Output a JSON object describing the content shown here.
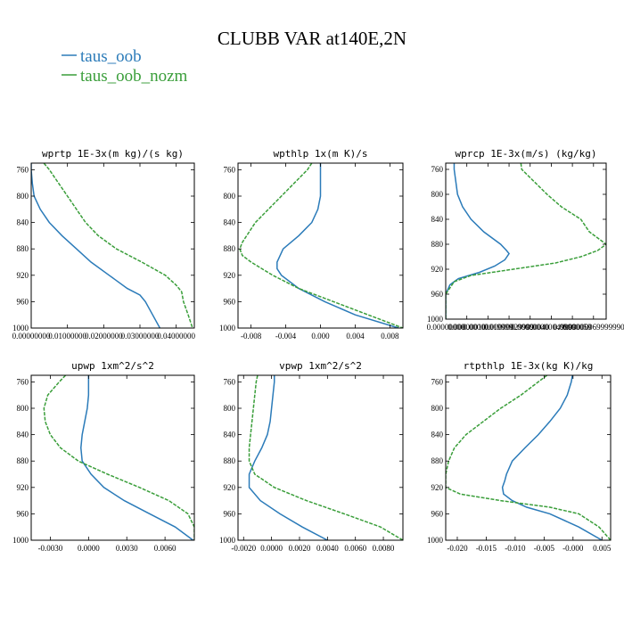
{
  "figure": {
    "title": "CLUBB VAR at140E,2N"
  },
  "colors": {
    "taus_oob": "#2b7bb9",
    "taus_oob_nozm": "#3a9e3a"
  },
  "legend": [
    {
      "name": "taus_oob",
      "color": "#2b7bb9",
      "dash": "none"
    },
    {
      "name": "taus_oob_nozm",
      "color": "#3a9e3a",
      "dash": "dashed"
    }
  ],
  "chart_data": [
    {
      "type": "line",
      "title": "wprtp  1E-3x(m kg)/(s kg)",
      "xlim": [
        0.0,
        0.045
      ],
      "ylim": [
        1000,
        750
      ],
      "xticks": [
        0.0,
        0.01,
        0.02,
        0.03,
        0.04
      ],
      "xtick_labels": [
        "0.00000000",
        "0.01000000",
        "0.02000000",
        "0.03000000",
        "0.04000000"
      ],
      "yticks": [
        760,
        800,
        840,
        880,
        920,
        960,
        1000
      ],
      "series": [
        {
          "name": "taus_oob",
          "y": [
            750,
            760,
            780,
            800,
            820,
            840,
            860,
            880,
            900,
            920,
            940,
            950,
            960,
            980,
            1000
          ],
          "x": [
            0.0,
            0.0,
            0.0003,
            0.0008,
            0.0025,
            0.005,
            0.0085,
            0.0125,
            0.0165,
            0.0215,
            0.0265,
            0.03,
            0.0315,
            0.0335,
            0.0355
          ]
        },
        {
          "name": "taus_oob_nozm",
          "y": [
            750,
            760,
            780,
            800,
            820,
            840,
            860,
            880,
            900,
            920,
            935,
            945,
            960,
            980,
            1000
          ],
          "x": [
            0.0035,
            0.005,
            0.0075,
            0.01,
            0.0125,
            0.015,
            0.0185,
            0.0235,
            0.0305,
            0.037,
            0.04,
            0.0415,
            0.042,
            0.0433,
            0.0445
          ]
        }
      ]
    },
    {
      "type": "line",
      "title": "wpthlp  1x(m K)/s",
      "xlim": [
        -0.0095,
        0.0095
      ],
      "ylim": [
        1000,
        750
      ],
      "xticks": [
        -0.008,
        -0.004,
        0.0,
        0.004,
        0.008
      ],
      "xtick_labels": [
        "-0.008",
        "-0.004",
        "0.000",
        "0.004",
        "0.008"
      ],
      "yticks": [
        760,
        800,
        840,
        880,
        920,
        960,
        1000
      ],
      "series": [
        {
          "name": "taus_oob",
          "y": [
            750,
            760,
            780,
            800,
            820,
            840,
            860,
            880,
            900,
            910,
            920,
            940,
            960,
            980,
            1000
          ],
          "x": [
            0.0,
            0.0,
            0.0,
            0.0,
            -0.0003,
            -0.001,
            -0.0025,
            -0.0043,
            -0.005,
            -0.005,
            -0.0045,
            -0.0025,
            0.0005,
            0.004,
            0.009
          ]
        },
        {
          "name": "taus_oob_nozm",
          "y": [
            750,
            760,
            780,
            800,
            820,
            840,
            860,
            870,
            880,
            890,
            900,
            920,
            940,
            960,
            980,
            1000
          ],
          "x": [
            -0.001,
            -0.0015,
            -0.003,
            -0.0045,
            -0.006,
            -0.0075,
            -0.0085,
            -0.009,
            -0.0093,
            -0.009,
            -0.008,
            -0.0055,
            -0.0025,
            0.0015,
            0.0055,
            0.0095
          ]
        }
      ]
    },
    {
      "type": "line",
      "title": "wprcp  1E-3x(m/s) (kg/kg)",
      "xlim": [
        0.0,
        1.9e-06
      ],
      "ylim": [
        1000,
        750
      ],
      "xticks": [
        0.0,
        2.5e-07,
        5e-07,
        7.5e-07,
        1e-06,
        1.25e-06,
        1.5e-06,
        1.75e-06
      ],
      "xtick_labels": [
        "0.00000000",
        "0.00000010",
        "0.00000019999",
        "0.00000029999",
        "0.00000040",
        "0.00000049999",
        "0.00000059",
        "0.00000069999990"
      ],
      "yticks": [
        760,
        800,
        840,
        880,
        920,
        960,
        1000
      ],
      "series": [
        {
          "name": "taus_oob",
          "y": [
            750,
            760,
            780,
            800,
            820,
            840,
            860,
            880,
            890,
            895,
            905,
            915,
            925,
            935,
            945,
            960,
            1000
          ],
          "x": [
            1e-07,
            1e-07,
            1.2e-07,
            1.4e-07,
            2e-07,
            3e-07,
            4.5e-07,
            6.5e-07,
            7.2e-07,
            7.5e-07,
            7e-07,
            5.8e-07,
            4e-07,
            1.5e-07,
            5e-08,
            0.0,
            0.0
          ]
        },
        {
          "name": "taus_oob_nozm",
          "y": [
            750,
            760,
            780,
            800,
            820,
            840,
            860,
            880,
            890,
            900,
            910,
            920,
            930,
            940,
            960,
            1000
          ],
          "x": [
            8.9e-07,
            9e-07,
            1.05e-06,
            1.2e-06,
            1.37e-06,
            1.6e-06,
            1.7e-06,
            1.9e-06,
            1.8e-06,
            1.6e-06,
            1.3e-06,
            8e-07,
            3e-07,
            1e-07,
            0.0,
            0.0
          ]
        }
      ]
    },
    {
      "type": "line",
      "title": "upwp  1xm^2/s^2",
      "xlim": [
        -0.0045,
        0.0083
      ],
      "ylim": [
        1000,
        750
      ],
      "xticks": [
        -0.003,
        0.0,
        0.003,
        0.006
      ],
      "xtick_labels": [
        "-0.0030",
        "0.0000",
        "0.0030",
        "0.0060"
      ],
      "yticks": [
        760,
        800,
        840,
        880,
        920,
        960,
        1000
      ],
      "series": [
        {
          "name": "taus_oob",
          "y": [
            750,
            760,
            780,
            800,
            820,
            840,
            860,
            880,
            900,
            920,
            940,
            960,
            980,
            1000
          ],
          "x": [
            0.0,
            0.0,
            0.0,
            -0.0001,
            -0.0003,
            -0.0005,
            -0.0006,
            -0.0005,
            0.0002,
            0.0012,
            0.0028,
            0.0048,
            0.0068,
            0.0082
          ]
        },
        {
          "name": "taus_oob_nozm",
          "y": [
            750,
            760,
            780,
            800,
            820,
            840,
            860,
            880,
            900,
            920,
            940,
            960,
            980,
            1000
          ],
          "x": [
            -0.0018,
            -0.0023,
            -0.0032,
            -0.0035,
            -0.0034,
            -0.003,
            -0.0022,
            -0.0008,
            0.0015,
            0.004,
            0.0063,
            0.0078,
            0.0083,
            0.0083
          ]
        }
      ]
    },
    {
      "type": "line",
      "title": "vpwp  1xm^2/s^2",
      "xlim": [
        -0.0024,
        0.0094
      ],
      "ylim": [
        1000,
        750
      ],
      "xticks": [
        -0.002,
        0.0,
        0.002,
        0.004,
        0.006,
        0.008
      ],
      "xtick_labels": [
        "-0.0020",
        "0.0000",
        "0.0020",
        "0.0040",
        "0.0060",
        "0.0080"
      ],
      "yticks": [
        760,
        800,
        840,
        880,
        920,
        960,
        1000
      ],
      "series": [
        {
          "name": "taus_oob",
          "y": [
            750,
            760,
            780,
            800,
            820,
            840,
            860,
            880,
            900,
            920,
            940,
            960,
            980,
            1000
          ],
          "x": [
            0.0002,
            0.0002,
            0.0001,
            0.0,
            -0.0001,
            -0.0003,
            -0.0007,
            -0.0012,
            -0.0016,
            -0.0016,
            -0.0008,
            0.0006,
            0.0022,
            0.004
          ]
        },
        {
          "name": "taus_oob_nozm",
          "y": [
            750,
            760,
            780,
            800,
            820,
            840,
            860,
            880,
            900,
            920,
            940,
            960,
            980,
            1000
          ],
          "x": [
            -0.001,
            -0.0011,
            -0.0012,
            -0.0013,
            -0.0014,
            -0.0015,
            -0.0016,
            -0.0016,
            -0.0012,
            0.0002,
            0.0025,
            0.0052,
            0.0078,
            0.0094
          ]
        }
      ]
    },
    {
      "type": "line",
      "title": "rtpthlp  1E-3x(kg K)/kg",
      "xlim": [
        -0.022,
        0.0065
      ],
      "ylim": [
        1000,
        750
      ],
      "xticks": [
        -0.02,
        -0.015,
        -0.01,
        -0.005,
        0.0,
        0.005
      ],
      "xtick_labels": [
        "-0.020",
        "-0.015",
        "-0.010",
        "-0.005",
        "-0.000",
        "0.005"
      ],
      "yticks": [
        760,
        800,
        840,
        880,
        920,
        960,
        1000
      ],
      "series": [
        {
          "name": "taus_oob",
          "y": [
            750,
            760,
            780,
            800,
            820,
            840,
            860,
            880,
            900,
            910,
            920,
            930,
            940,
            950,
            960,
            980,
            1000
          ],
          "x": [
            -0.0001,
            -0.0003,
            -0.001,
            -0.0022,
            -0.004,
            -0.006,
            -0.0083,
            -0.0105,
            -0.0115,
            -0.0118,
            -0.0122,
            -0.012,
            -0.0105,
            -0.008,
            -0.004,
            0.001,
            0.005
          ]
        },
        {
          "name": "taus_oob_nozm",
          "y": [
            750,
            760,
            780,
            800,
            820,
            840,
            860,
            880,
            900,
            920,
            930,
            940,
            950,
            960,
            980,
            1000
          ],
          "x": [
            -0.0045,
            -0.006,
            -0.009,
            -0.0125,
            -0.0155,
            -0.0185,
            -0.0205,
            -0.0215,
            -0.022,
            -0.022,
            -0.0195,
            -0.0125,
            -0.004,
            0.001,
            0.0045,
            0.0065
          ]
        }
      ]
    }
  ]
}
